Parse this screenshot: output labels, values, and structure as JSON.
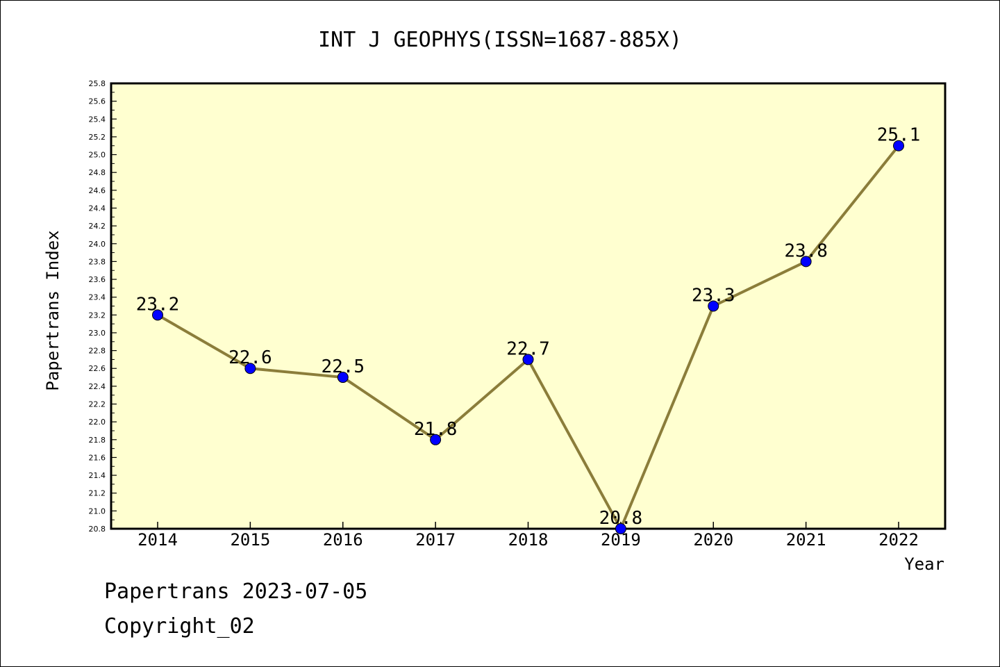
{
  "chart_data": {
    "type": "line",
    "title": "INT J GEOPHYS(ISSN=1687-885X)",
    "xlabel": "Year",
    "ylabel": "Papertrans Index",
    "categories": [
      "2014",
      "2015",
      "2016",
      "2017",
      "2018",
      "2019",
      "2020",
      "2021",
      "2022"
    ],
    "series": [
      {
        "values": [
          23.2,
          22.6,
          22.5,
          21.8,
          22.7,
          20.8,
          23.3,
          23.8,
          25.1
        ]
      }
    ],
    "data_labels": [
      "23.2",
      "22.6",
      "22.5",
      "21.8",
      "22.7",
      "20.8",
      "23.3",
      "23.8",
      "25.1"
    ],
    "ylim": [
      20.8,
      25.8
    ],
    "ytick_step": 0.2,
    "yticks": [
      "20.8",
      "21.0",
      "21.2",
      "21.4",
      "21.6",
      "21.8",
      "22.0",
      "22.2",
      "22.4",
      "22.6",
      "22.8",
      "23.0",
      "23.2",
      "23.4",
      "23.6",
      "23.8",
      "24.0",
      "24.2",
      "24.4",
      "24.6",
      "24.8",
      "25.0",
      "25.2",
      "25.4",
      "25.6",
      "25.8"
    ],
    "grid": false,
    "legend": "none",
    "colors": {
      "plot_background": "#ffffd0",
      "line": "#8b7d3a",
      "marker": "#0000ff"
    }
  },
  "footer": {
    "date_line": "Papertrans 2023-07-05",
    "copyright": "Copyright_02"
  }
}
